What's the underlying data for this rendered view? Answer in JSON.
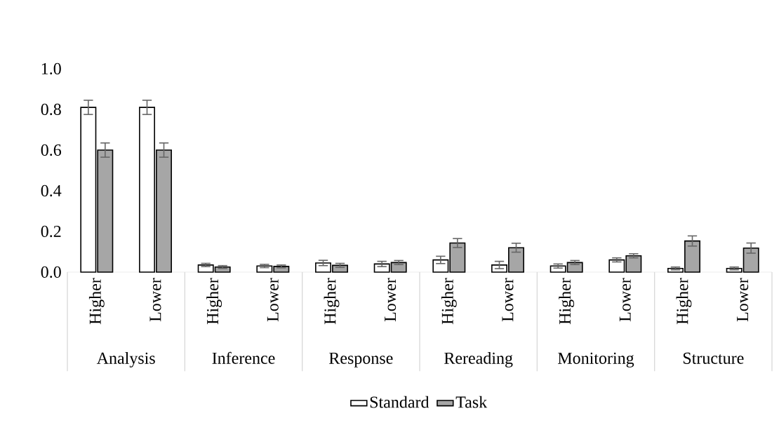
{
  "chart_data": {
    "type": "bar",
    "categories": [
      "Higher",
      "Lower",
      "Higher",
      "Lower",
      "Higher",
      "Lower",
      "Higher",
      "Lower",
      "Higher",
      "Lower",
      "Higher",
      "Lower"
    ],
    "annotations": [
      "Analysis",
      "Inference",
      "Response",
      "Rereading",
      "Monitoring",
      "Structure"
    ],
    "series": [
      {
        "name": "Standard",
        "color": "#ffffff",
        "values": [
          0.81,
          0.81,
          0.035,
          0.03,
          0.045,
          0.04,
          0.06,
          0.035,
          0.03,
          0.06,
          0.018,
          0.018
        ],
        "errors": [
          0.035,
          0.035,
          0.008,
          0.008,
          0.013,
          0.013,
          0.018,
          0.018,
          0.01,
          0.01,
          0.007,
          0.007
        ]
      },
      {
        "name": "Task",
        "color": "#a6a6a6",
        "values": [
          0.6,
          0.6,
          0.025,
          0.028,
          0.033,
          0.047,
          0.143,
          0.12,
          0.047,
          0.08,
          0.153,
          0.118
        ],
        "errors": [
          0.035,
          0.035,
          0.007,
          0.007,
          0.01,
          0.01,
          0.022,
          0.022,
          0.01,
          0.01,
          0.025,
          0.025
        ]
      }
    ],
    "ylim": [
      0,
      1.0
    ],
    "yticks": [
      {
        "value": 0,
        "label": "0.0"
      },
      {
        "value": 0.2,
        "label": "0.2"
      },
      {
        "value": 0.4,
        "label": "0.4"
      },
      {
        "value": 0.6,
        "label": "0.6"
      },
      {
        "value": 0.8,
        "label": "0.8"
      },
      {
        "value": 1.0,
        "label": "1.0"
      }
    ],
    "grid": false,
    "legend": "bottom"
  }
}
